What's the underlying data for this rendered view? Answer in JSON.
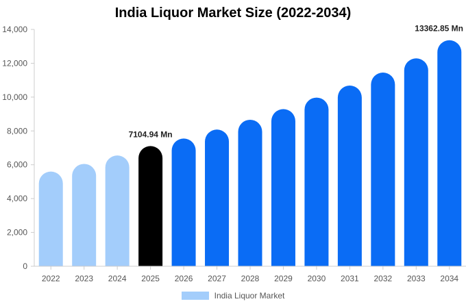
{
  "chart_data": {
    "type": "bar",
    "title": "India Liquor Market Size (2022-2034)",
    "categories": [
      "2022",
      "2023",
      "2024",
      "2025",
      "2026",
      "2027",
      "2028",
      "2029",
      "2030",
      "2031",
      "2032",
      "2033",
      "2034"
    ],
    "series": [
      {
        "name": "India Liquor Market",
        "values": [
          5600,
          6050,
          6550,
          7104.94,
          7550,
          8080,
          8660,
          9290,
          9970,
          10680,
          11450,
          12290,
          13362.85
        ]
      }
    ],
    "ylim": [
      0,
      14000
    ],
    "yticks": [
      0,
      2000,
      4000,
      6000,
      8000,
      10000,
      12000,
      14000
    ],
    "ytick_labels": [
      "0",
      "2,000",
      "4,000",
      "6,000",
      "8,000",
      "10,000",
      "12,000",
      "14,000"
    ],
    "bar_colors": [
      "#a3cdfb",
      "#a3cdfb",
      "#a3cdfb",
      "#000000",
      "#0a6cf5",
      "#0a6cf5",
      "#0a6cf5",
      "#0a6cf5",
      "#0a6cf5",
      "#0a6cf5",
      "#0a6cf5",
      "#0a6cf5",
      "#0a6cf5"
    ],
    "annotations": [
      {
        "category": "2025",
        "text": "7104.94 Mn"
      },
      {
        "category": "2034",
        "text": "13362.85 Mn"
      }
    ],
    "legend": {
      "label": "India Liquor Market",
      "position": "bottom",
      "swatch_color": "#a3cdfb"
    },
    "grid": false
  }
}
